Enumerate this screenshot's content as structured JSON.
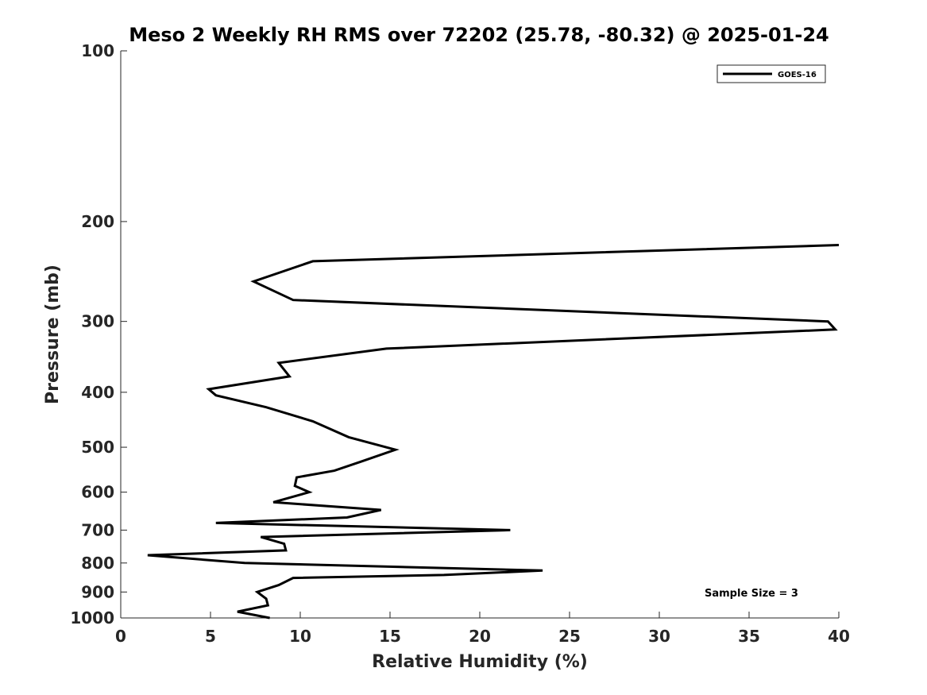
{
  "chart_data": {
    "type": "line",
    "title": "Meso 2 Weekly RH RMS over 72202 (25.78, -80.32) @ 2025-01-24",
    "xlabel": "Relative Humidity (%)",
    "ylabel": "Pressure (mb)",
    "xlim": [
      0,
      40
    ],
    "ylim": [
      1000,
      100
    ],
    "yscale": "log",
    "y_reversed": true,
    "x_ticks": [
      0,
      5,
      10,
      15,
      20,
      25,
      30,
      35,
      40
    ],
    "x_tick_labels": [
      "0",
      "5",
      "10",
      "15",
      "20",
      "25",
      "30",
      "35",
      "40"
    ],
    "y_ticks": [
      100,
      200,
      300,
      400,
      500,
      600,
      700,
      800,
      900,
      1000
    ],
    "y_tick_labels": [
      "100",
      "200",
      "300",
      "400",
      "500",
      "600",
      "700",
      "800",
      "900",
      "1000"
    ],
    "grid": false,
    "legend_position": "top-right",
    "annotation": "Sample Size = 3",
    "series": [
      {
        "name": "GOES-16",
        "color": "#000000",
        "points": [
          {
            "x": 8.3,
            "y": 1000
          },
          {
            "x": 6.5,
            "y": 975
          },
          {
            "x": 8.2,
            "y": 950
          },
          {
            "x": 8.1,
            "y": 925
          },
          {
            "x": 7.6,
            "y": 900
          },
          {
            "x": 8.8,
            "y": 875
          },
          {
            "x": 9.6,
            "y": 850
          },
          {
            "x": 18.0,
            "y": 840
          },
          {
            "x": 23.5,
            "y": 825
          },
          {
            "x": 6.9,
            "y": 800
          },
          {
            "x": 1.5,
            "y": 775
          },
          {
            "x": 9.2,
            "y": 760
          },
          {
            "x": 9.1,
            "y": 740
          },
          {
            "x": 7.8,
            "y": 720
          },
          {
            "x": 21.7,
            "y": 700
          },
          {
            "x": 5.3,
            "y": 680
          },
          {
            "x": 12.6,
            "y": 665
          },
          {
            "x": 14.5,
            "y": 645
          },
          {
            "x": 8.5,
            "y": 625
          },
          {
            "x": 10.5,
            "y": 600
          },
          {
            "x": 9.7,
            "y": 585
          },
          {
            "x": 9.8,
            "y": 565
          },
          {
            "x": 11.9,
            "y": 550
          },
          {
            "x": 13.4,
            "y": 530
          },
          {
            "x": 15.3,
            "y": 505
          },
          {
            "x": 12.7,
            "y": 480
          },
          {
            "x": 10.7,
            "y": 450
          },
          {
            "x": 8.1,
            "y": 425
          },
          {
            "x": 5.3,
            "y": 405
          },
          {
            "x": 4.9,
            "y": 395
          },
          {
            "x": 9.4,
            "y": 375
          },
          {
            "x": 8.8,
            "y": 355
          },
          {
            "x": 14.8,
            "y": 335
          },
          {
            "x": 39.8,
            "y": 310
          },
          {
            "x": 39.4,
            "y": 300
          },
          {
            "x": 9.6,
            "y": 275
          },
          {
            "x": 7.4,
            "y": 255
          },
          {
            "x": 10.7,
            "y": 235
          },
          {
            "x": 40.0,
            "y": 220
          }
        ]
      }
    ]
  }
}
